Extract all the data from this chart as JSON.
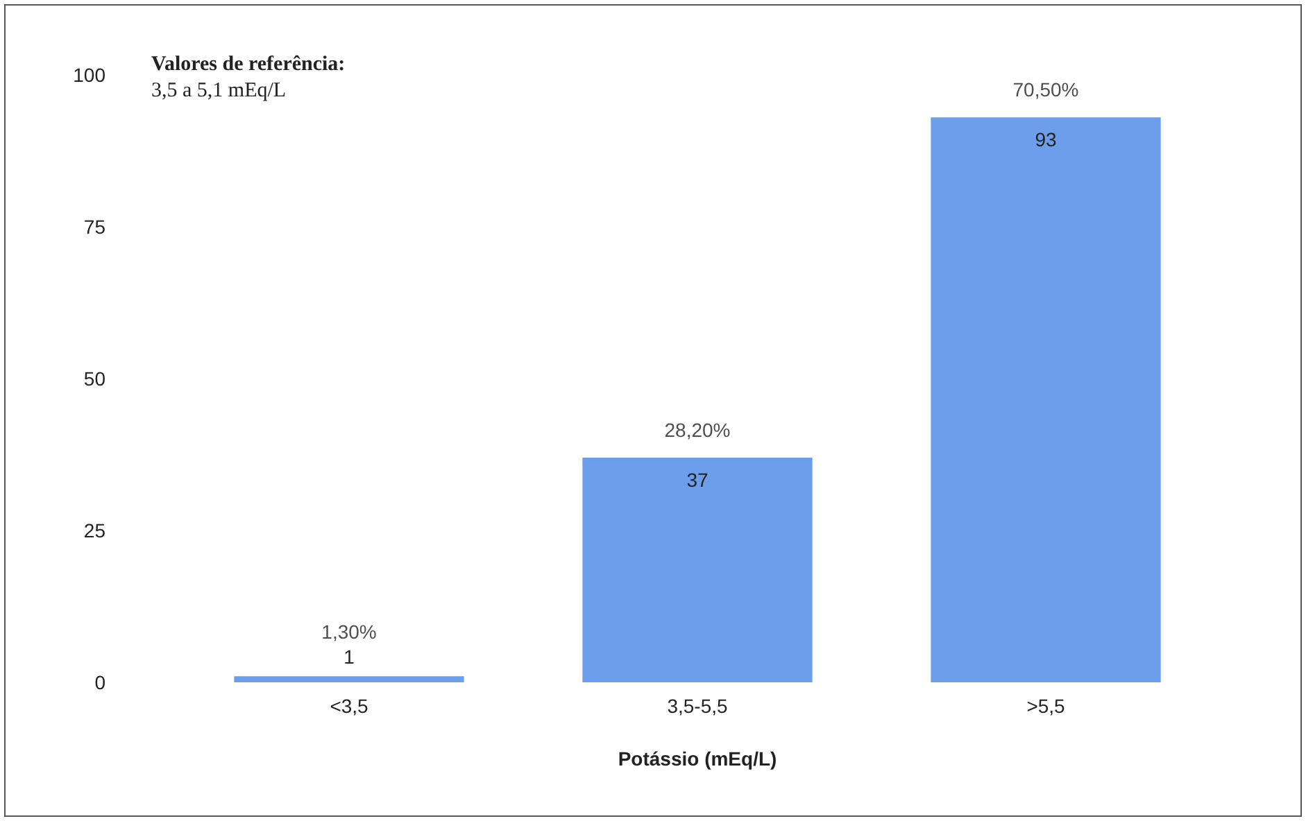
{
  "chart_data": {
    "type": "bar",
    "categories": [
      "<3,5",
      "3,5-5,5",
      ">5,5"
    ],
    "values": [
      1,
      37,
      93
    ],
    "color": "#6d9eeb",
    "xlabel": "Potássio (mEq/L)",
    "ylim": [
      0,
      100
    ],
    "yticks": [
      0,
      25,
      50,
      75,
      100
    ],
    "grid": false,
    "data_labels": true,
    "annotations": [
      "Valores de referência:",
      "3,5 a 5,1 mEq/L",
      {
        "text": "1,30%",
        "x": "<3,5",
        "y": 1
      },
      {
        "text": "28,20%",
        "x": "3,5-5,5",
        "y": 37
      },
      {
        "text": "70,50%",
        "x": ">5,5",
        "y": 93
      }
    ]
  }
}
